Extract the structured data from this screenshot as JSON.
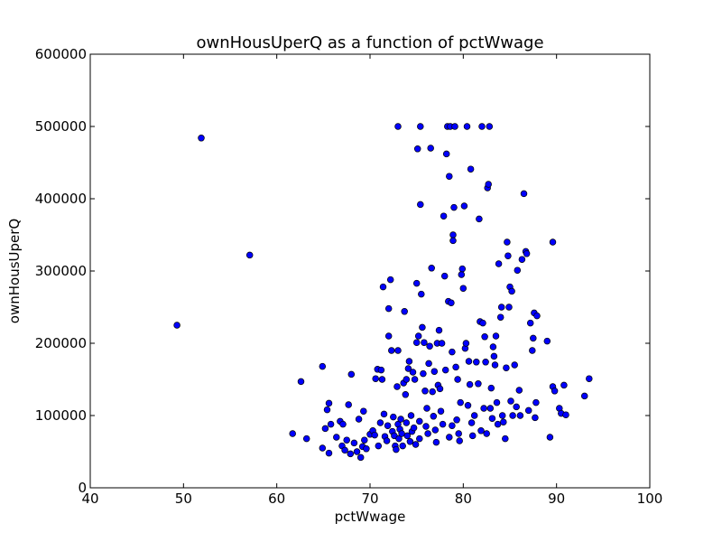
{
  "chart_data": {
    "type": "scatter",
    "title": "ownHousUperQ as a function of pctWwage",
    "xlabel": "pctWwage",
    "ylabel": "ownHousUperQ",
    "xlim": [
      40,
      100
    ],
    "ylim": [
      0,
      600000
    ],
    "xticks": [
      40,
      50,
      60,
      70,
      80,
      90,
      100
    ],
    "yticks": [
      0,
      100000,
      200000,
      300000,
      400000,
      500000,
      600000
    ],
    "grid": false,
    "legend": "none",
    "marker_color": "#0000ff",
    "marker_edge": "#000000",
    "points": [
      [
        49.3,
        225000
      ],
      [
        51.9,
        484000
      ],
      [
        57.1,
        322000
      ],
      [
        61.7,
        75000
      ],
      [
        62.6,
        147000
      ],
      [
        63.2,
        68000
      ],
      [
        64.9,
        168000
      ],
      [
        64.9,
        55000
      ],
      [
        65.2,
        82000
      ],
      [
        65.4,
        108000
      ],
      [
        65.6,
        117000
      ],
      [
        65.6,
        48000
      ],
      [
        65.8,
        88000
      ],
      [
        66.4,
        70000
      ],
      [
        66.8,
        92000
      ],
      [
        67.0,
        58000
      ],
      [
        67.1,
        88000
      ],
      [
        67.3,
        52000
      ],
      [
        67.5,
        66000
      ],
      [
        67.7,
        115000
      ],
      [
        67.9,
        47000
      ],
      [
        68.0,
        157000
      ],
      [
        68.3,
        62000
      ],
      [
        68.6,
        50000
      ],
      [
        68.8,
        95000
      ],
      [
        69.0,
        42000
      ],
      [
        69.2,
        57000
      ],
      [
        69.3,
        106000
      ],
      [
        69.4,
        66000
      ],
      [
        69.6,
        54000
      ],
      [
        70.0,
        74000
      ],
      [
        70.3,
        79000
      ],
      [
        70.5,
        73000
      ],
      [
        70.6,
        151000
      ],
      [
        70.8,
        164000
      ],
      [
        70.9,
        58000
      ],
      [
        71.1,
        90000
      ],
      [
        71.2,
        163000
      ],
      [
        71.3,
        150000
      ],
      [
        71.4,
        278000
      ],
      [
        71.5,
        102000
      ],
      [
        71.6,
        71000
      ],
      [
        71.8,
        65000
      ],
      [
        71.9,
        86000
      ],
      [
        72.0,
        210000
      ],
      [
        72.0,
        248000
      ],
      [
        72.2,
        288000
      ],
      [
        72.3,
        190000
      ],
      [
        72.4,
        78000
      ],
      [
        72.5,
        98000
      ],
      [
        72.6,
        72000
      ],
      [
        72.7,
        58000
      ],
      [
        72.8,
        53000
      ],
      [
        72.9,
        140000
      ],
      [
        73.0,
        500000
      ],
      [
        73.0,
        190000
      ],
      [
        73.0,
        88000
      ],
      [
        73.1,
        68000
      ],
      [
        73.2,
        81000
      ],
      [
        73.3,
        95000
      ],
      [
        73.4,
        75000
      ],
      [
        73.5,
        58000
      ],
      [
        73.6,
        145000
      ],
      [
        73.7,
        244000
      ],
      [
        73.8,
        129000
      ],
      [
        73.9,
        150000
      ],
      [
        73.9,
        90000
      ],
      [
        74.0,
        72000
      ],
      [
        74.1,
        165000
      ],
      [
        74.2,
        175000
      ],
      [
        74.3,
        64000
      ],
      [
        74.4,
        100000
      ],
      [
        74.5,
        78000
      ],
      [
        74.6,
        160000
      ],
      [
        74.7,
        83000
      ],
      [
        74.8,
        150000
      ],
      [
        74.9,
        60000
      ],
      [
        75.0,
        201000
      ],
      [
        75.0,
        283000
      ],
      [
        75.1,
        469000
      ],
      [
        75.2,
        210000
      ],
      [
        75.3,
        92000
      ],
      [
        75.3,
        68000
      ],
      [
        75.4,
        500000
      ],
      [
        75.4,
        392000
      ],
      [
        75.5,
        268000
      ],
      [
        75.6,
        222000
      ],
      [
        75.7,
        158000
      ],
      [
        75.8,
        201000
      ],
      [
        75.9,
        134000
      ],
      [
        76.0,
        85000
      ],
      [
        76.1,
        110000
      ],
      [
        76.2,
        75000
      ],
      [
        76.3,
        172000
      ],
      [
        76.4,
        196000
      ],
      [
        76.5,
        470000
      ],
      [
        76.6,
        304000
      ],
      [
        76.7,
        133000
      ],
      [
        76.8,
        99000
      ],
      [
        76.9,
        161000
      ],
      [
        77.0,
        80000
      ],
      [
        77.1,
        63000
      ],
      [
        77.2,
        200000
      ],
      [
        77.3,
        142000
      ],
      [
        77.4,
        218000
      ],
      [
        77.5,
        137000
      ],
      [
        77.6,
        106000
      ],
      [
        77.7,
        200000
      ],
      [
        77.8,
        88000
      ],
      [
        77.9,
        376000
      ],
      [
        78.0,
        293000
      ],
      [
        78.1,
        163000
      ],
      [
        78.2,
        462000
      ],
      [
        78.3,
        500000
      ],
      [
        78.4,
        258000
      ],
      [
        78.5,
        431000
      ],
      [
        78.5,
        70000
      ],
      [
        78.6,
        500000
      ],
      [
        78.7,
        256000
      ],
      [
        78.8,
        188000
      ],
      [
        78.8,
        86000
      ],
      [
        78.9,
        350000
      ],
      [
        78.9,
        342000
      ],
      [
        79.0,
        388000
      ],
      [
        79.1,
        500000
      ],
      [
        79.2,
        167000
      ],
      [
        79.3,
        94000
      ],
      [
        79.4,
        150000
      ],
      [
        79.5,
        75000
      ],
      [
        79.6,
        65000
      ],
      [
        79.7,
        118000
      ],
      [
        79.8,
        295000
      ],
      [
        79.9,
        303000
      ],
      [
        80.0,
        276000
      ],
      [
        80.1,
        390000
      ],
      [
        80.2,
        193000
      ],
      [
        80.3,
        200000
      ],
      [
        80.4,
        500000
      ],
      [
        80.5,
        114000
      ],
      [
        80.6,
        175000
      ],
      [
        80.7,
        143000
      ],
      [
        80.8,
        441000
      ],
      [
        80.9,
        90000
      ],
      [
        81.0,
        72000
      ],
      [
        81.2,
        100000
      ],
      [
        81.4,
        174000
      ],
      [
        81.6,
        144000
      ],
      [
        81.7,
        372000
      ],
      [
        81.8,
        230000
      ],
      [
        81.9,
        79000
      ],
      [
        82.0,
        500000
      ],
      [
        82.1,
        228000
      ],
      [
        82.2,
        110000
      ],
      [
        82.3,
        209000
      ],
      [
        82.4,
        174000
      ],
      [
        82.5,
        75000
      ],
      [
        82.6,
        415000
      ],
      [
        82.7,
        420000
      ],
      [
        82.8,
        500000
      ],
      [
        82.9,
        110000
      ],
      [
        83.0,
        138000
      ],
      [
        83.1,
        96000
      ],
      [
        83.2,
        195000
      ],
      [
        83.3,
        182000
      ],
      [
        83.4,
        170000
      ],
      [
        83.5,
        210000
      ],
      [
        83.6,
        118000
      ],
      [
        83.7,
        88000
      ],
      [
        83.8,
        310000
      ],
      [
        84.0,
        236000
      ],
      [
        84.1,
        250000
      ],
      [
        84.2,
        100000
      ],
      [
        84.3,
        91000
      ],
      [
        84.5,
        68000
      ],
      [
        84.6,
        166000
      ],
      [
        84.7,
        340000
      ],
      [
        84.8,
        321000
      ],
      [
        84.9,
        250000
      ],
      [
        85.0,
        278000
      ],
      [
        85.1,
        120000
      ],
      [
        85.2,
        272000
      ],
      [
        85.3,
        100000
      ],
      [
        85.5,
        170000
      ],
      [
        85.7,
        112000
      ],
      [
        85.8,
        301000
      ],
      [
        86.0,
        135000
      ],
      [
        86.1,
        100000
      ],
      [
        86.3,
        316000
      ],
      [
        86.5,
        407000
      ],
      [
        86.7,
        327000
      ],
      [
        86.8,
        324000
      ],
      [
        87.0,
        107000
      ],
      [
        87.2,
        228000
      ],
      [
        87.4,
        190000
      ],
      [
        87.5,
        207000
      ],
      [
        87.6,
        242000
      ],
      [
        87.7,
        97000
      ],
      [
        87.8,
        118000
      ],
      [
        87.9,
        238000
      ],
      [
        89.0,
        203000
      ],
      [
        89.3,
        70000
      ],
      [
        89.6,
        340000
      ],
      [
        89.6,
        140000
      ],
      [
        89.8,
        134000
      ],
      [
        90.3,
        110000
      ],
      [
        90.5,
        103000
      ],
      [
        90.8,
        142000
      ],
      [
        91.0,
        101000
      ],
      [
        93.0,
        127000
      ],
      [
        93.5,
        151000
      ]
    ]
  }
}
